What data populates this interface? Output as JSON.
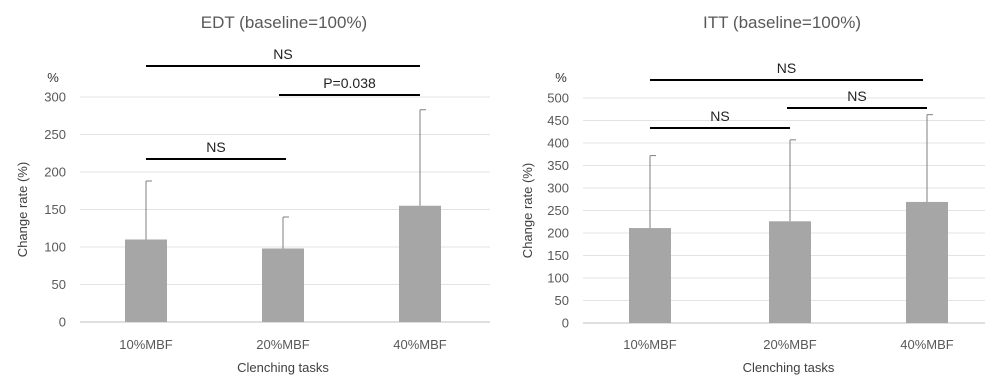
{
  "chart_data": [
    {
      "type": "bar",
      "title": "EDT (baseline=100%)",
      "xlabel": "Clenching tasks",
      "ylabel": "Change rate (%)",
      "unit_label": "%",
      "categories": [
        "10%MBF",
        "20%MBF",
        "40%MBF"
      ],
      "values": [
        110,
        98,
        155
      ],
      "error_upper": [
        188,
        140,
        283
      ],
      "ylim": [
        0,
        300
      ],
      "yticks": [
        0,
        50,
        100,
        150,
        200,
        250,
        300
      ],
      "grid": true,
      "bar_color": "#A6A6A6",
      "comparisons": [
        {
          "from": "10%MBF",
          "to": "20%MBF",
          "label": "NS"
        },
        {
          "from": "20%MBF",
          "to": "40%MBF",
          "label": "P=0.038"
        },
        {
          "from": "10%MBF",
          "to": "40%MBF",
          "label": "NS"
        }
      ]
    },
    {
      "type": "bar",
      "title": "ITT (baseline=100%)",
      "xlabel": "Clenching tasks",
      "ylabel": "Change rate (%)",
      "unit_label": "%",
      "categories": [
        "10%MBF",
        "20%MBF",
        "40%MBF"
      ],
      "values": [
        211,
        226,
        269
      ],
      "error_upper": [
        372,
        407,
        463
      ],
      "ylim": [
        0,
        500
      ],
      "yticks": [
        0,
        50,
        100,
        150,
        200,
        250,
        300,
        350,
        400,
        450,
        500
      ],
      "grid": true,
      "bar_color": "#A6A6A6",
      "comparisons": [
        {
          "from": "10%MBF",
          "to": "20%MBF",
          "label": "NS"
        },
        {
          "from": "20%MBF",
          "to": "40%MBF",
          "label": "NS"
        },
        {
          "from": "10%MBF",
          "to": "40%MBF",
          "label": "NS"
        }
      ]
    }
  ]
}
